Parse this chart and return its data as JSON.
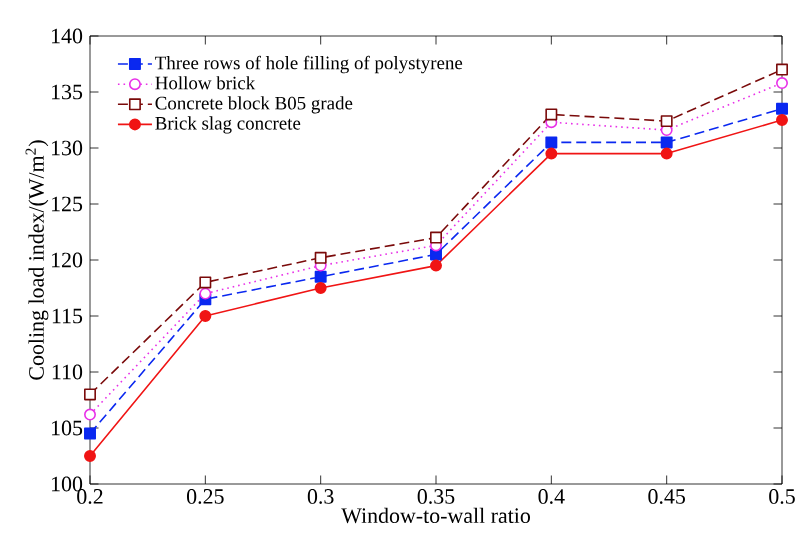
{
  "chart_data": {
    "type": "line",
    "xlabel": "Window-to-wall ratio",
    "ylabel": "Cooling load index/(W/m$^{2}$)",
    "x": [
      0.2,
      0.25,
      0.3,
      0.35,
      0.4,
      0.45,
      0.5
    ],
    "xlim": [
      0.2,
      0.5
    ],
    "xticks": [
      0.2,
      0.25,
      0.3,
      0.35,
      0.4,
      0.45,
      0.5
    ],
    "ylim": [
      100,
      140
    ],
    "yticks": [
      100,
      105,
      110,
      115,
      120,
      125,
      130,
      135,
      140
    ],
    "grid": false,
    "legend": "top left",
    "series": [
      {
        "name": "Three rows of hole filling of polystyrene",
        "color": "#0a28f0",
        "marker": "square",
        "line_style": "dashed",
        "values": [
          104.5,
          116.5,
          118.5,
          120.5,
          130.5,
          130.5,
          133.5
        ]
      },
      {
        "name": "Hollow brick",
        "color": "#e830e8",
        "marker": "circle",
        "line_style": "dotted",
        "values": [
          106.2,
          117,
          119.5,
          121.3,
          132.3,
          131.6,
          135.8
        ]
      },
      {
        "name": "Concrete block B05 grade",
        "color": "#7a0a0a",
        "marker": "square",
        "line_style": "dashed",
        "values": [
          108,
          118,
          120.2,
          122,
          133,
          132.4,
          137
        ]
      },
      {
        "name": "Brick slag concrete",
        "color": "#f01414",
        "marker": "circle",
        "line_style": "solid",
        "values": [
          102.5,
          115,
          117.5,
          119.5,
          129.5,
          129.5,
          132.5
        ]
      }
    ]
  }
}
